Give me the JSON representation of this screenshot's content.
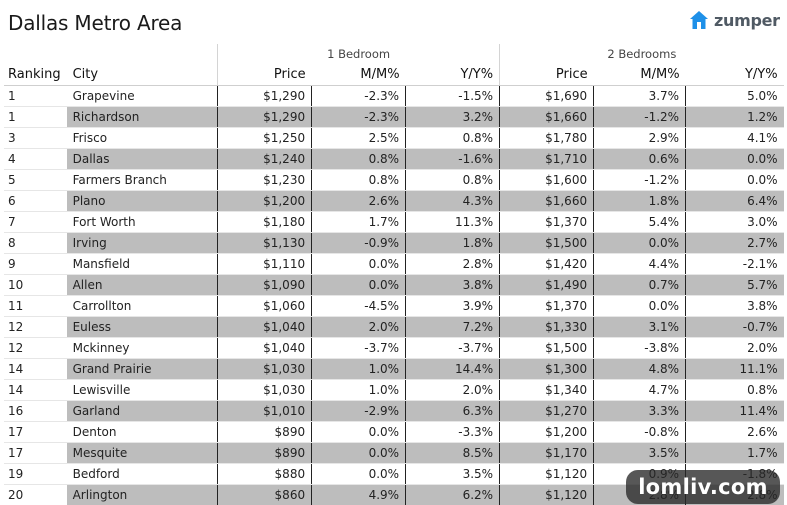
{
  "title": "Dallas Metro Area",
  "logo": {
    "text": "zumper",
    "icon": "house-icon",
    "color": "#1e90e8"
  },
  "table": {
    "groups": {
      "one_bedroom": "1 Bedroom",
      "two_bedrooms": "2 Bedrooms"
    },
    "columns": {
      "ranking": "Ranking",
      "city": "City",
      "price1": "Price",
      "mm1": "M/M%",
      "yy1": "Y/Y%",
      "price2": "Price",
      "mm2": "M/M%",
      "yy2": "Y/Y%"
    },
    "rows": [
      {
        "rank": "1",
        "city": "Grapevine",
        "p1": "$1,290",
        "mm1": "-2.3%",
        "yy1": "-1.5%",
        "p2": "$1,690",
        "mm2": "3.7%",
        "yy2": "5.0%"
      },
      {
        "rank": "1",
        "city": "Richardson",
        "p1": "$1,290",
        "mm1": "-2.3%",
        "yy1": "3.2%",
        "p2": "$1,660",
        "mm2": "-1.2%",
        "yy2": "1.2%"
      },
      {
        "rank": "3",
        "city": "Frisco",
        "p1": "$1,250",
        "mm1": "2.5%",
        "yy1": "0.8%",
        "p2": "$1,780",
        "mm2": "2.9%",
        "yy2": "4.1%"
      },
      {
        "rank": "4",
        "city": "Dallas",
        "p1": "$1,240",
        "mm1": "0.8%",
        "yy1": "-1.6%",
        "p2": "$1,710",
        "mm2": "0.6%",
        "yy2": "0.0%"
      },
      {
        "rank": "5",
        "city": "Farmers Branch",
        "p1": "$1,230",
        "mm1": "0.8%",
        "yy1": "0.8%",
        "p2": "$1,600",
        "mm2": "-1.2%",
        "yy2": "0.0%"
      },
      {
        "rank": "6",
        "city": "Plano",
        "p1": "$1,200",
        "mm1": "2.6%",
        "yy1": "4.3%",
        "p2": "$1,660",
        "mm2": "1.8%",
        "yy2": "6.4%"
      },
      {
        "rank": "7",
        "city": "Fort Worth",
        "p1": "$1,180",
        "mm1": "1.7%",
        "yy1": "11.3%",
        "p2": "$1,370",
        "mm2": "5.4%",
        "yy2": "3.0%"
      },
      {
        "rank": "8",
        "city": "Irving",
        "p1": "$1,130",
        "mm1": "-0.9%",
        "yy1": "1.8%",
        "p2": "$1,500",
        "mm2": "0.0%",
        "yy2": "2.7%"
      },
      {
        "rank": "9",
        "city": "Mansfield",
        "p1": "$1,110",
        "mm1": "0.0%",
        "yy1": "2.8%",
        "p2": "$1,420",
        "mm2": "4.4%",
        "yy2": "-2.1%"
      },
      {
        "rank": "10",
        "city": "Allen",
        "p1": "$1,090",
        "mm1": "0.0%",
        "yy1": "3.8%",
        "p2": "$1,490",
        "mm2": "0.7%",
        "yy2": "5.7%"
      },
      {
        "rank": "11",
        "city": "Carrollton",
        "p1": "$1,060",
        "mm1": "-4.5%",
        "yy1": "3.9%",
        "p2": "$1,370",
        "mm2": "0.0%",
        "yy2": "3.8%"
      },
      {
        "rank": "12",
        "city": "Euless",
        "p1": "$1,040",
        "mm1": "2.0%",
        "yy1": "7.2%",
        "p2": "$1,330",
        "mm2": "3.1%",
        "yy2": "-0.7%"
      },
      {
        "rank": "12",
        "city": "Mckinney",
        "p1": "$1,040",
        "mm1": "-3.7%",
        "yy1": "-3.7%",
        "p2": "$1,500",
        "mm2": "-3.8%",
        "yy2": "2.0%"
      },
      {
        "rank": "14",
        "city": "Grand Prairie",
        "p1": "$1,030",
        "mm1": "1.0%",
        "yy1": "14.4%",
        "p2": "$1,300",
        "mm2": "4.8%",
        "yy2": "11.1%"
      },
      {
        "rank": "14",
        "city": "Lewisville",
        "p1": "$1,030",
        "mm1": "1.0%",
        "yy1": "2.0%",
        "p2": "$1,340",
        "mm2": "4.7%",
        "yy2": "0.8%"
      },
      {
        "rank": "16",
        "city": "Garland",
        "p1": "$1,010",
        "mm1": "-2.9%",
        "yy1": "6.3%",
        "p2": "$1,270",
        "mm2": "3.3%",
        "yy2": "11.4%"
      },
      {
        "rank": "17",
        "city": "Denton",
        "p1": "$890",
        "mm1": "0.0%",
        "yy1": "-3.3%",
        "p2": "$1,200",
        "mm2": "-0.8%",
        "yy2": "2.6%"
      },
      {
        "rank": "17",
        "city": "Mesquite",
        "p1": "$890",
        "mm1": "0.0%",
        "yy1": "8.5%",
        "p2": "$1,170",
        "mm2": "3.5%",
        "yy2": "1.7%"
      },
      {
        "rank": "19",
        "city": "Bedford",
        "p1": "$880",
        "mm1": "0.0%",
        "yy1": "3.5%",
        "p2": "$1,120",
        "mm2": "0.9%",
        "yy2": "-1.8%"
      },
      {
        "rank": "20",
        "city": "Arlington",
        "p1": "$860",
        "mm1": "4.9%",
        "yy1": "6.2%",
        "p2": "$1,120",
        "mm2": "2.8%",
        "yy2": "2.8%"
      }
    ]
  },
  "watermark": "lomliv.com",
  "colors": {
    "row_shade": "#bdbdbd",
    "text": "#222222"
  }
}
